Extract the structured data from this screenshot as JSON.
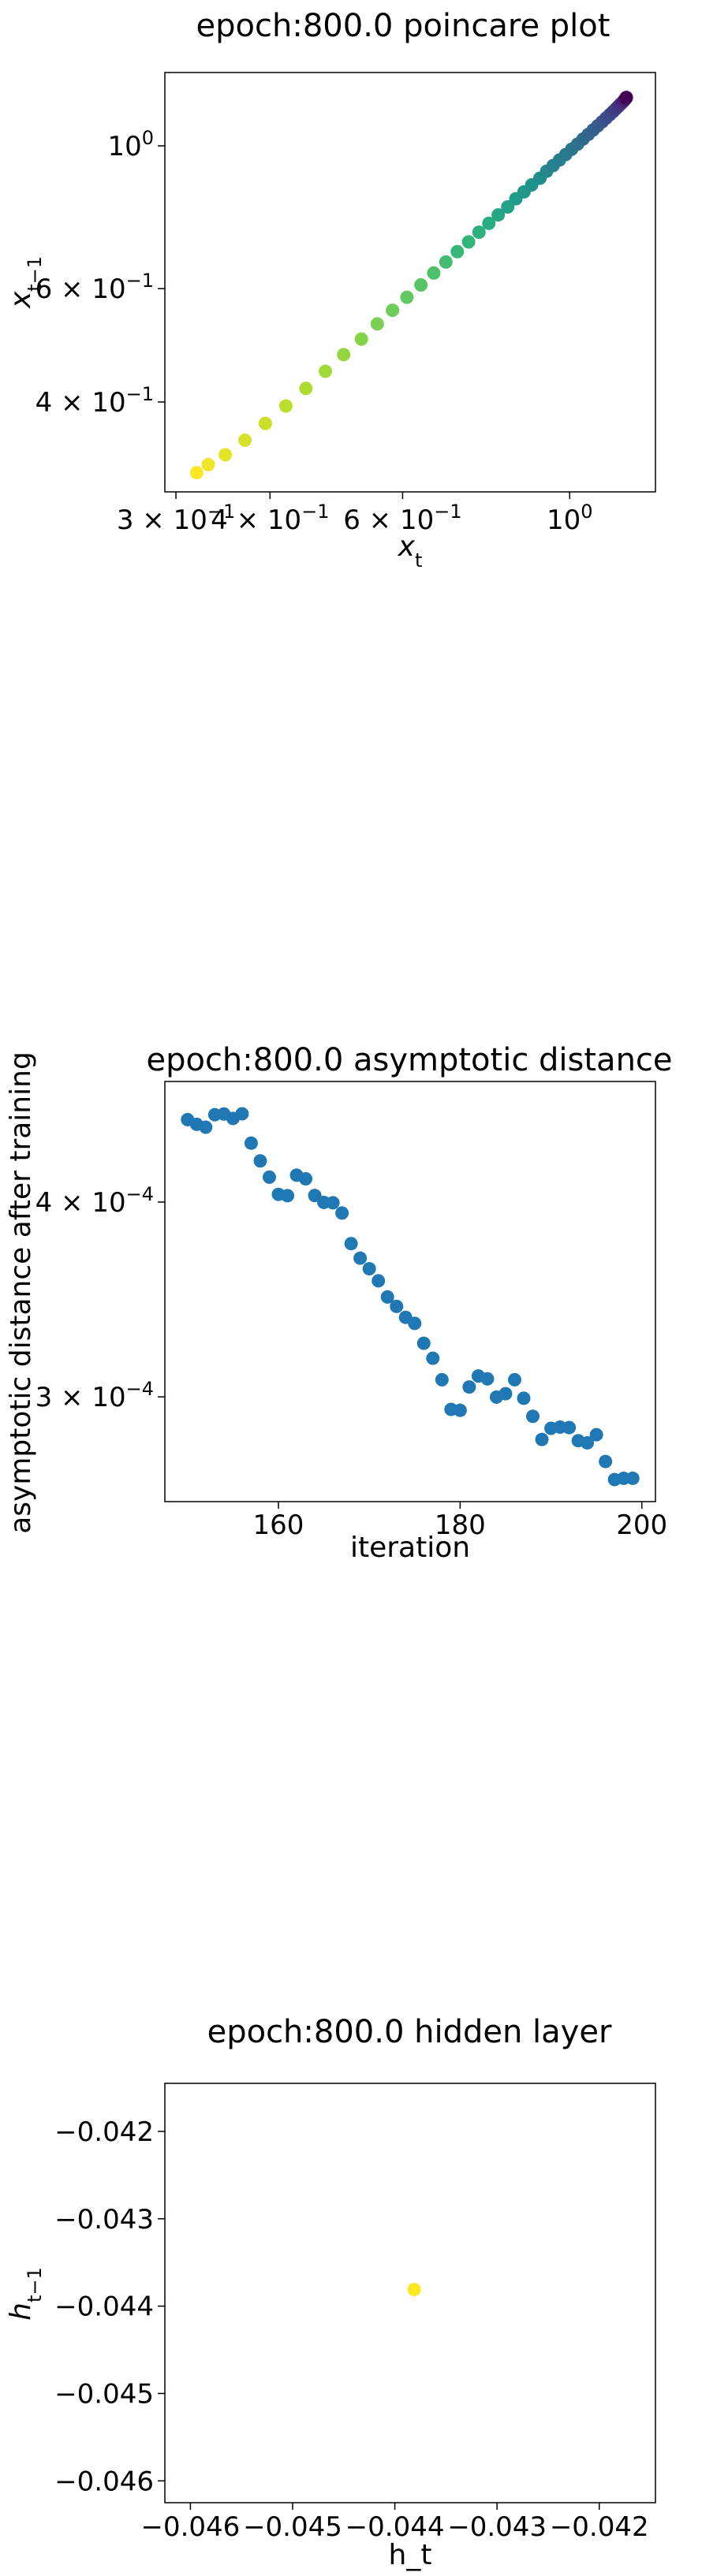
{
  "chart_data": [
    {
      "type": "scatter",
      "title": "epoch:800.0 poincare plot",
      "xlabel": "x_t",
      "ylabel": "x_{t-1}",
      "xscale": "log",
      "yscale": "log",
      "xlim": [
        0.29,
        1.3
      ],
      "ylim": [
        0.29,
        1.3
      ],
      "colormap": "viridis",
      "x_tick_labels": [
        {
          "value": 0.3,
          "mantissa": "3 × 10",
          "exp": "−1"
        },
        {
          "value": 0.4,
          "mantissa": "4 × 10",
          "exp": "−1"
        },
        {
          "value": 0.6,
          "mantissa": "6 × 10",
          "exp": "−1"
        },
        {
          "value": 1.0,
          "mantissa": "10",
          "exp": "0"
        }
      ],
      "y_tick_labels": [
        {
          "value": 0.4,
          "mantissa": "4 × 10",
          "exp": "−1"
        },
        {
          "value": 0.6,
          "mantissa": "6 × 10",
          "exp": "−1"
        },
        {
          "value": 1.0,
          "mantissa": "10",
          "exp": "0"
        }
      ],
      "series": [
        {
          "name": "x",
          "x": [
            0.3197,
            0.3312,
            0.3489,
            0.3705,
            0.3943,
            0.4199,
            0.4464,
            0.4738,
            0.501,
            0.5289,
            0.5553,
            0.5818,
            0.608,
            0.6345,
            0.66,
            0.6849,
            0.7092,
            0.7342,
            0.7578,
            0.7811,
            0.8037,
            0.8275,
            0.8482,
            0.8698,
            0.8905,
            0.9131,
            0.932,
            0.9508,
            0.9695,
            0.9881,
            1.0063,
            1.0245,
            1.0416,
            1.0583,
            1.0744,
            1.0897,
            1.1043,
            1.1177,
            1.1302,
            1.1418,
            1.152,
            1.1608,
            1.1684,
            1.175,
            1.1801,
            1.1838,
            1.1864,
            1.188,
            1.1889,
            1.1893
          ],
          "y": [
            0.3106,
            0.3197,
            0.3312,
            0.3489,
            0.3705,
            0.3943,
            0.4199,
            0.4464,
            0.4738,
            0.501,
            0.5289,
            0.5553,
            0.5818,
            0.608,
            0.6345,
            0.66,
            0.6849,
            0.7092,
            0.7342,
            0.7578,
            0.7811,
            0.8037,
            0.8275,
            0.8482,
            0.8698,
            0.8905,
            0.9131,
            0.932,
            0.9508,
            0.9695,
            0.9881,
            1.0063,
            1.0245,
            1.0416,
            1.0583,
            1.0744,
            1.0897,
            1.1043,
            1.1177,
            1.1302,
            1.1418,
            1.152,
            1.1608,
            1.1684,
            1.175,
            1.1801,
            1.1838,
            1.1864,
            1.188,
            1.1889
          ]
        }
      ]
    },
    {
      "type": "scatter",
      "title": "epoch:800.0 asymptotic distance",
      "xlabel": "iteration",
      "ylabel": "asymptotic distance after training",
      "yscale": "log",
      "xlim": [
        147.5,
        201.5
      ],
      "ylim": [
        0.000257,
        0.000478
      ],
      "color": "#1f77b4",
      "x_ticks": [
        160,
        180,
        200
      ],
      "y_tick_labels": [
        {
          "value": 0.0003,
          "mantissa": "3 × 10",
          "exp": "−4"
        },
        {
          "value": 0.0004,
          "mantissa": "4 × 10",
          "exp": "−4"
        }
      ],
      "series": [
        {
          "name": "asymptotic distance",
          "x": [
            150,
            151,
            152,
            153,
            154,
            155,
            156,
            157,
            158,
            159,
            160,
            161,
            162,
            163,
            164,
            165,
            166,
            167,
            168,
            169,
            170,
            171,
            172,
            173,
            174,
            175,
            176,
            177,
            178,
            179,
            180,
            181,
            182,
            183,
            184,
            185,
            186,
            187,
            188,
            189,
            190,
            191,
            192,
            193,
            194,
            195,
            196,
            197,
            198,
            199
          ],
          "y": [
            0.0004518,
            0.0004487,
            0.0004468,
            0.0004551,
            0.0004556,
            0.0004526,
            0.0004557,
            0.0004364,
            0.0004251,
            0.000415,
            0.0004046,
            0.0004038,
            0.0004162,
            0.000414,
            0.0004039,
            0.0003998,
            0.0003996,
            0.0003936,
            0.0003762,
            0.0003682,
            0.0003625,
            0.0003561,
            0.0003477,
            0.0003429,
            0.0003374,
            0.0003344,
            0.0003247,
            0.0003176,
            0.0003077,
            0.0002945,
            0.0002941,
            0.0003044,
            0.0003094,
            0.0003081,
            0.0002999,
            0.0003014,
            0.0003077,
            0.0002994,
            0.0002915,
            0.0002817,
            0.0002864,
            0.0002869,
            0.0002867,
            0.0002812,
            0.0002803,
            0.0002837,
            0.0002727,
            0.0002655,
            0.000266,
            0.000266
          ]
        }
      ]
    },
    {
      "type": "scatter",
      "title": "epoch:800.0 hidden layer",
      "xlabel": "h_t",
      "ylabel": "h_{t-1}",
      "xlim": [
        -0.04625,
        -0.04145
      ],
      "ylim": [
        -0.04625,
        -0.04145
      ],
      "x_ticks": [
        "−0.046",
        "−0.045",
        "−0.044",
        "−0.043",
        "−0.042"
      ],
      "y_ticks": [
        "−0.042",
        "−0.043",
        "−0.044",
        "−0.045",
        "−0.046"
      ],
      "series": [
        {
          "name": "h",
          "x": [
            -0.04381
          ],
          "y": [
            -0.04381
          ],
          "color": "#fde725"
        }
      ]
    }
  ]
}
